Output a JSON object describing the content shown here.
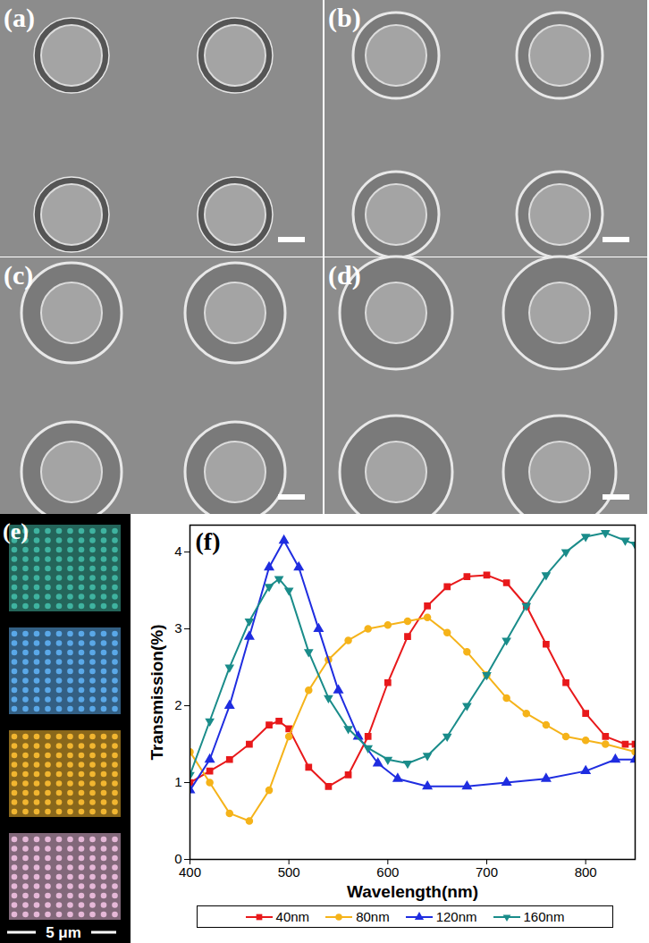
{
  "panel_labels": [
    "(a)",
    "(b)",
    "(c)",
    "(d)",
    "(e)"
  ],
  "scale_bar_label": "5 μm",
  "chart_data": {
    "type": "line",
    "title": "(f)",
    "x_label": "Wavelength(nm)",
    "y_label": "Transmission(%)",
    "xlim": [
      400,
      850
    ],
    "xticks": [
      400,
      500,
      600,
      700,
      800
    ],
    "ylim": [
      0,
      4.35
    ],
    "yticks": [
      0,
      1,
      2,
      3,
      4
    ],
    "legend": "bottom",
    "series": [
      {
        "name": "40nm",
        "color": "#e8191b",
        "marker": "square",
        "x": [
          400,
          420,
          440,
          460,
          480,
          490,
          500,
          520,
          540,
          560,
          580,
          600,
          620,
          640,
          660,
          680,
          700,
          720,
          740,
          760,
          780,
          800,
          820,
          840,
          850
        ],
        "values": [
          1.0,
          1.15,
          1.3,
          1.5,
          1.75,
          1.8,
          1.7,
          1.2,
          0.95,
          1.1,
          1.6,
          2.3,
          2.9,
          3.3,
          3.55,
          3.68,
          3.7,
          3.6,
          3.3,
          2.8,
          2.3,
          1.9,
          1.6,
          1.5,
          1.5
        ]
      },
      {
        "name": "80nm",
        "color": "#f5b31a",
        "marker": "circle",
        "x": [
          400,
          420,
          440,
          460,
          480,
          500,
          520,
          540,
          560,
          580,
          600,
          620,
          640,
          660,
          680,
          700,
          720,
          740,
          760,
          780,
          800,
          820,
          850
        ],
        "values": [
          1.4,
          1.0,
          0.6,
          0.5,
          0.9,
          1.6,
          2.2,
          2.6,
          2.85,
          3.0,
          3.05,
          3.1,
          3.15,
          2.95,
          2.7,
          2.4,
          2.1,
          1.9,
          1.75,
          1.6,
          1.55,
          1.5,
          1.4
        ]
      },
      {
        "name": "120nm",
        "color": "#1f2de0",
        "marker": "triangle",
        "x": [
          400,
          420,
          440,
          460,
          480,
          495,
          510,
          530,
          550,
          570,
          590,
          610,
          640,
          680,
          720,
          760,
          800,
          830,
          850
        ],
        "values": [
          0.9,
          1.3,
          2.0,
          2.9,
          3.8,
          4.15,
          3.8,
          3.0,
          2.2,
          1.6,
          1.25,
          1.05,
          0.95,
          0.95,
          1.0,
          1.05,
          1.15,
          1.3,
          1.3
        ]
      },
      {
        "name": "160nm",
        "color": "#1a8c8a",
        "marker": "triangle-down",
        "x": [
          400,
          420,
          440,
          460,
          480,
          490,
          500,
          520,
          540,
          560,
          580,
          600,
          620,
          640,
          660,
          680,
          700,
          720,
          740,
          760,
          780,
          800,
          820,
          840,
          850
        ],
        "values": [
          1.1,
          1.8,
          2.5,
          3.1,
          3.55,
          3.65,
          3.5,
          2.7,
          2.1,
          1.7,
          1.45,
          1.3,
          1.25,
          1.35,
          1.6,
          2.0,
          2.4,
          2.85,
          3.3,
          3.7,
          4.0,
          4.2,
          4.25,
          4.15,
          4.1
        ]
      }
    ]
  }
}
